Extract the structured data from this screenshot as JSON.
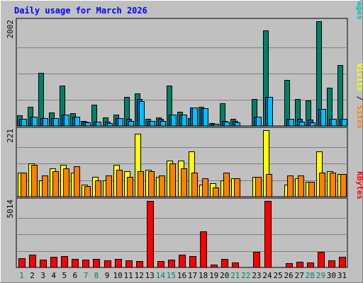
{
  "chart_data": {
    "type": "bar",
    "title": "Daily usage for March 2026",
    "categories": [
      "1",
      "2",
      "3",
      "4",
      "5",
      "6",
      "7",
      "8",
      "9",
      "10",
      "11",
      "12",
      "13",
      "14",
      "15",
      "16",
      "17",
      "18",
      "19",
      "20",
      "21",
      "22",
      "23",
      "24",
      "25",
      "26",
      "27",
      "28",
      "29",
      "30",
      "31"
    ],
    "weekend_days": [
      "1",
      "7",
      "8",
      "14",
      "15",
      "21",
      "22",
      "28",
      "29"
    ],
    "panels": [
      {
        "id": "hits",
        "ymax_label": "2002",
        "ymax": 2002,
        "legend": [
          {
            "text": "Pages",
            "color": "#00c0c0"
          },
          {
            "text": " / ",
            "color": "#000000"
          },
          {
            "text": "Files",
            "color": "#0060c0"
          },
          {
            "text": " / ",
            "color": "#000000"
          },
          {
            "text": "Hits",
            "color": "#00806a"
          }
        ],
        "series": [
          {
            "name": "Hits",
            "color": "#00806a",
            "values": [
              200,
              360,
              1020,
              260,
              770,
              250,
              90,
              410,
              160,
              220,
              560,
              620,
              130,
              160,
              770,
              270,
              150,
              370,
              50,
              430,
              140,
              0,
              510,
              1830,
              0,
              880,
              510,
              490,
              2000,
              730,
              1160
            ]
          },
          {
            "name": "Files",
            "color": "#0060c0",
            "values": [
              130,
              170,
              150,
              150,
              220,
              170,
              80,
              80,
              80,
              150,
              130,
              520,
              100,
              140,
              220,
              220,
              350,
              340,
              40,
              90,
              100,
              0,
              170,
              550,
              0,
              130,
              130,
              120,
              320,
              140,
              140
            ]
          },
          {
            "name": "Pages",
            "color": "#00c0ff",
            "values": [
              130,
              170,
              150,
              150,
              220,
              170,
              70,
              80,
              60,
              150,
              100,
              480,
              100,
              90,
              220,
              220,
              350,
              340,
              40,
              80,
              70,
              0,
              170,
              550,
              0,
              130,
              80,
              70,
              320,
              140,
              140
            ]
          }
        ]
      },
      {
        "id": "visits",
        "ymax_label": "221",
        "ymax": 221,
        "legend": [
          {
            "text": "Sites",
            "color": "#ff8000"
          },
          {
            "text": " / ",
            "color": "#000000"
          },
          {
            "text": "Visits",
            "color": "#ffff00"
          }
        ],
        "series": [
          {
            "name": "Visits",
            "color": "#ffff00",
            "values": [
              80,
              110,
              55,
              95,
              105,
              80,
              40,
              65,
              55,
              105,
              85,
              210,
              90,
              65,
              120,
              120,
              150,
              40,
              45,
              55,
              60,
              0,
              65,
              220,
              0,
              40,
              60,
              50,
              150,
              85,
              75
            ]
          },
          {
            "name": "Sites",
            "color": "#ff8000",
            "values": [
              80,
              105,
              70,
              85,
              95,
              100,
              35,
              55,
              70,
              90,
              65,
              85,
              85,
              70,
              110,
              95,
              80,
              60,
              30,
              80,
              60,
              0,
              65,
              75,
              0,
              70,
              70,
              50,
              80,
              80,
              75
            ]
          }
        ]
      },
      {
        "id": "kbytes",
        "ymax_label": "5014",
        "ymax": 5014,
        "legend": [
          {
            "text": "KBytes",
            "color": "#ff0000"
          }
        ],
        "series": [
          {
            "name": "KBytes",
            "color": "#ff0000",
            "values": [
              700,
              950,
              600,
              800,
              850,
              650,
              600,
              650,
              550,
              650,
              550,
              500,
              5014,
              500,
              600,
              950,
              850,
              2700,
              200,
              650,
              400,
              0,
              1200,
              5014,
              0,
              300,
              450,
              400,
              1200,
              550,
              800
            ]
          }
        ]
      }
    ]
  }
}
